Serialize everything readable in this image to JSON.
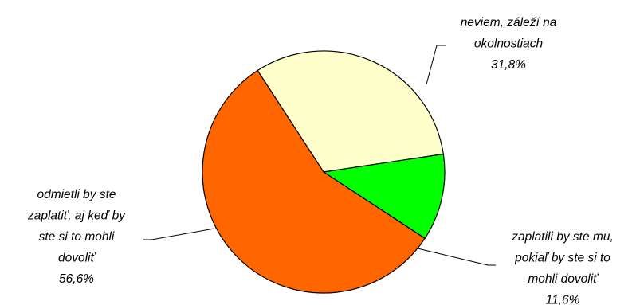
{
  "chart_data": {
    "type": "pie",
    "title": "",
    "start_angle_deg": -33,
    "direction": "clockwise",
    "slices": [
      {
        "label_lines": [
          "neviem, záleží na",
          "okolnostiach"
        ],
        "value_text": "31,8%",
        "value": 31.8,
        "color": "#FFFFCC"
      },
      {
        "label_lines": [
          "zaplatili by ste mu,",
          "pokiaľ by ste si to",
          "mohli dovoliť"
        ],
        "value_text": "11,6%",
        "value": 11.6,
        "color": "#00FF00"
      },
      {
        "label_lines": [
          "odmietli by ste",
          "zaplatiť, aj keď by",
          "ste si to mohli",
          "dovoliť"
        ],
        "value_text": "56,6%",
        "value": 56.6,
        "color": "#FF6600"
      }
    ],
    "outline_color": "#000000",
    "leader_line_color": "#000000"
  }
}
